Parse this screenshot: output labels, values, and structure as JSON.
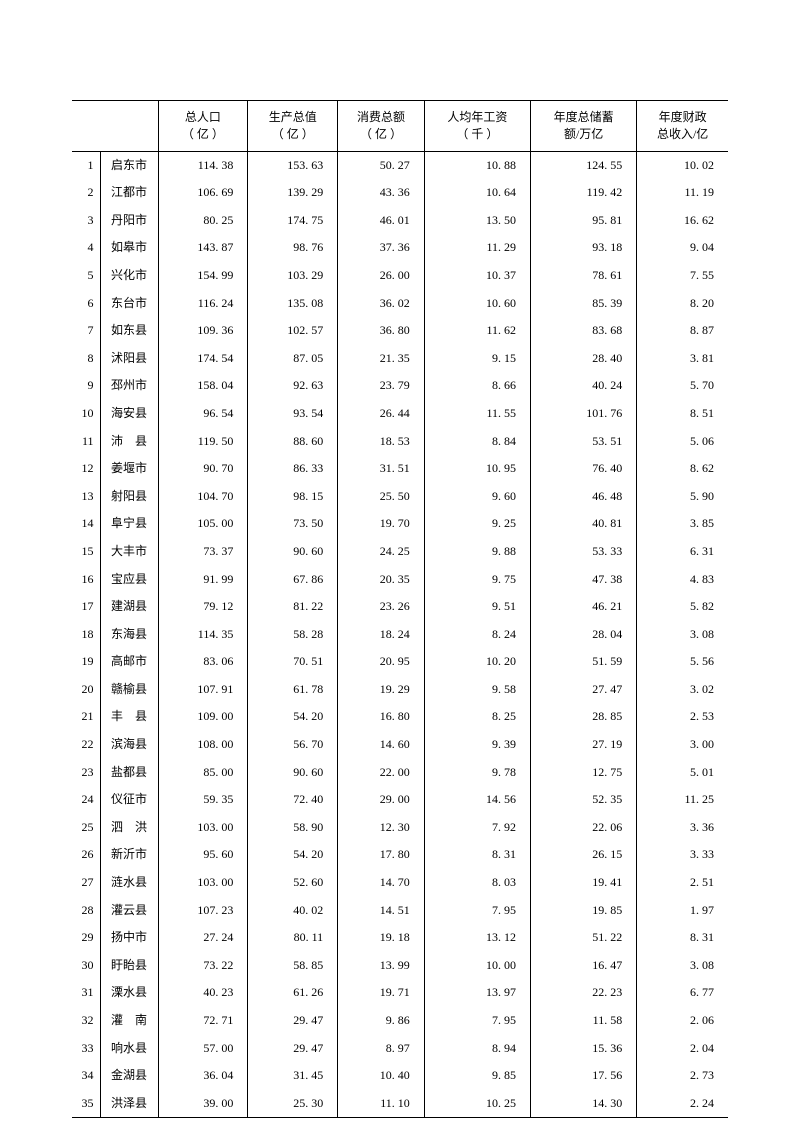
{
  "table": {
    "type": "table",
    "background_color": "#ffffff",
    "border_color": "#000000",
    "text_color": "#000000",
    "font_size_header": 12,
    "font_size_body": 12,
    "columns": [
      {
        "key": "idx",
        "label": "",
        "align": "right"
      },
      {
        "key": "name",
        "label": "",
        "align": "center"
      },
      {
        "key": "pop",
        "label": "总人口\n（ 亿 ）",
        "align": "right"
      },
      {
        "key": "gdp",
        "label": "生产总值\n（ 亿 ）",
        "align": "right"
      },
      {
        "key": "consume",
        "label": "消费总额\n（ 亿 ）",
        "align": "right"
      },
      {
        "key": "wage",
        "label": "人均年工资\n（ 千 ）",
        "align": "right"
      },
      {
        "key": "savings",
        "label": "年度总储蓄\n额/万亿",
        "align": "right"
      },
      {
        "key": "fiscal",
        "label": "年度财政\n总收入/亿",
        "align": "right"
      }
    ],
    "rows": [
      {
        "idx": "1",
        "name": "启东市",
        "pop": "114. 38",
        "gdp": "153. 63",
        "consume": "50. 27",
        "wage": "10. 88",
        "savings": "124. 55",
        "fiscal": "10. 02"
      },
      {
        "idx": "2",
        "name": "江都市",
        "pop": "106. 69",
        "gdp": "139. 29",
        "consume": "43. 36",
        "wage": "10. 64",
        "savings": "119. 42",
        "fiscal": "11. 19"
      },
      {
        "idx": "3",
        "name": "丹阳市",
        "pop": "80. 25",
        "gdp": "174. 75",
        "consume": "46. 01",
        "wage": "13. 50",
        "savings": "95. 81",
        "fiscal": "16. 62"
      },
      {
        "idx": "4",
        "name": "如皋市",
        "pop": "143. 87",
        "gdp": "98. 76",
        "consume": "37. 36",
        "wage": "11. 29",
        "savings": "93. 18",
        "fiscal": "9. 04"
      },
      {
        "idx": "5",
        "name": "兴化市",
        "pop": "154. 99",
        "gdp": "103. 29",
        "consume": "26. 00",
        "wage": "10. 37",
        "savings": "78. 61",
        "fiscal": "7. 55"
      },
      {
        "idx": "6",
        "name": "东台市",
        "pop": "116. 24",
        "gdp": "135. 08",
        "consume": "36. 02",
        "wage": "10. 60",
        "savings": "85. 39",
        "fiscal": "8. 20"
      },
      {
        "idx": "7",
        "name": "如东县",
        "pop": "109. 36",
        "gdp": "102. 57",
        "consume": "36. 80",
        "wage": "11. 62",
        "savings": "83. 68",
        "fiscal": "8. 87"
      },
      {
        "idx": "8",
        "name": "沭阳县",
        "pop": "174. 54",
        "gdp": "87. 05",
        "consume": "21. 35",
        "wage": "9. 15",
        "savings": "28. 40",
        "fiscal": "3. 81"
      },
      {
        "idx": "9",
        "name": "邳州市",
        "pop": "158. 04",
        "gdp": "92. 63",
        "consume": "23. 79",
        "wage": "8. 66",
        "savings": "40. 24",
        "fiscal": "5. 70"
      },
      {
        "idx": "10",
        "name": "海安县",
        "pop": "96. 54",
        "gdp": "93. 54",
        "consume": "26. 44",
        "wage": "11. 55",
        "savings": "101. 76",
        "fiscal": "8. 51"
      },
      {
        "idx": "11",
        "name": "沛　县",
        "pop": "119. 50",
        "gdp": "88. 60",
        "consume": "18. 53",
        "wage": "8. 84",
        "savings": "53. 51",
        "fiscal": "5. 06"
      },
      {
        "idx": "12",
        "name": "姜堰市",
        "pop": "90. 70",
        "gdp": "86. 33",
        "consume": "31. 51",
        "wage": "10. 95",
        "savings": "76. 40",
        "fiscal": "8. 62"
      },
      {
        "idx": "13",
        "name": "射阳县",
        "pop": "104. 70",
        "gdp": "98. 15",
        "consume": "25. 50",
        "wage": "9. 60",
        "savings": "46. 48",
        "fiscal": "5. 90"
      },
      {
        "idx": "14",
        "name": "阜宁县",
        "pop": "105. 00",
        "gdp": "73. 50",
        "consume": "19. 70",
        "wage": "9. 25",
        "savings": "40. 81",
        "fiscal": "3. 85"
      },
      {
        "idx": "15",
        "name": "大丰市",
        "pop": "73. 37",
        "gdp": "90. 60",
        "consume": "24. 25",
        "wage": "9. 88",
        "savings": "53. 33",
        "fiscal": "6. 31"
      },
      {
        "idx": "16",
        "name": "宝应县",
        "pop": "91. 99",
        "gdp": "67. 86",
        "consume": "20. 35",
        "wage": "9. 75",
        "savings": "47. 38",
        "fiscal": "4. 83"
      },
      {
        "idx": "17",
        "name": "建湖县",
        "pop": "79. 12",
        "gdp": "81. 22",
        "consume": "23. 26",
        "wage": "9. 51",
        "savings": "46. 21",
        "fiscal": "5. 82"
      },
      {
        "idx": "18",
        "name": "东海县",
        "pop": "114. 35",
        "gdp": "58. 28",
        "consume": "18. 24",
        "wage": "8. 24",
        "savings": "28. 04",
        "fiscal": "3. 08"
      },
      {
        "idx": "19",
        "name": "高邮市",
        "pop": "83. 06",
        "gdp": "70. 51",
        "consume": "20. 95",
        "wage": "10. 20",
        "savings": "51. 59",
        "fiscal": "5. 56"
      },
      {
        "idx": "20",
        "name": "赣榆县",
        "pop": "107. 91",
        "gdp": "61. 78",
        "consume": "19. 29",
        "wage": "9. 58",
        "savings": "27. 47",
        "fiscal": "3. 02"
      },
      {
        "idx": "21",
        "name": "丰　县",
        "pop": "109. 00",
        "gdp": "54. 20",
        "consume": "16. 80",
        "wage": "8. 25",
        "savings": "28. 85",
        "fiscal": "2. 53"
      },
      {
        "idx": "22",
        "name": "滨海县",
        "pop": "108. 00",
        "gdp": "56. 70",
        "consume": "14. 60",
        "wage": "9. 39",
        "savings": "27. 19",
        "fiscal": "3. 00"
      },
      {
        "idx": "23",
        "name": "盐都县",
        "pop": "85. 00",
        "gdp": "90. 60",
        "consume": "22. 00",
        "wage": "9. 78",
        "savings": "12. 75",
        "fiscal": "5. 01"
      },
      {
        "idx": "24",
        "name": "仪征市",
        "pop": "59. 35",
        "gdp": "72. 40",
        "consume": "29. 00",
        "wage": "14. 56",
        "savings": "52. 35",
        "fiscal": "11. 25"
      },
      {
        "idx": "25",
        "name": "泗　洪",
        "pop": "103. 00",
        "gdp": "58. 90",
        "consume": "12. 30",
        "wage": "7. 92",
        "savings": "22. 06",
        "fiscal": "3. 36"
      },
      {
        "idx": "26",
        "name": "新沂市",
        "pop": "95. 60",
        "gdp": "54. 20",
        "consume": "17. 80",
        "wage": "8. 31",
        "savings": "26. 15",
        "fiscal": "3. 33"
      },
      {
        "idx": "27",
        "name": "涟水县",
        "pop": "103. 00",
        "gdp": "52. 60",
        "consume": "14. 70",
        "wage": "8. 03",
        "savings": "19. 41",
        "fiscal": "2. 51"
      },
      {
        "idx": "28",
        "name": "灌云县",
        "pop": "107. 23",
        "gdp": "40. 02",
        "consume": "14. 51",
        "wage": "7. 95",
        "savings": "19. 85",
        "fiscal": "1. 97"
      },
      {
        "idx": "29",
        "name": "扬中市",
        "pop": "27. 24",
        "gdp": "80. 11",
        "consume": "19. 18",
        "wage": "13. 12",
        "savings": "51. 22",
        "fiscal": "8. 31"
      },
      {
        "idx": "30",
        "name": "盱眙县",
        "pop": "73. 22",
        "gdp": "58. 85",
        "consume": "13. 99",
        "wage": "10. 00",
        "savings": "16. 47",
        "fiscal": "3. 08"
      },
      {
        "idx": "31",
        "name": "溧水县",
        "pop": "40. 23",
        "gdp": "61. 26",
        "consume": "19. 71",
        "wage": "13. 97",
        "savings": "22. 23",
        "fiscal": "6. 77"
      },
      {
        "idx": "32",
        "name": "灌　南",
        "pop": "72. 71",
        "gdp": "29. 47",
        "consume": "9. 86",
        "wage": "7. 95",
        "savings": "11. 58",
        "fiscal": "2. 06"
      },
      {
        "idx": "33",
        "name": "响水县",
        "pop": "57. 00",
        "gdp": "29. 47",
        "consume": "8. 97",
        "wage": "8. 94",
        "savings": "15. 36",
        "fiscal": "2. 04"
      },
      {
        "idx": "34",
        "name": "金湖县",
        "pop": "36. 04",
        "gdp": "31. 45",
        "consume": "10. 40",
        "wage": "9. 85",
        "savings": "17. 56",
        "fiscal": "2. 73"
      },
      {
        "idx": "35",
        "name": "洪泽县",
        "pop": "39. 00",
        "gdp": "25. 30",
        "consume": "11. 10",
        "wage": "10. 25",
        "savings": "14. 30",
        "fiscal": "2. 24"
      }
    ]
  }
}
